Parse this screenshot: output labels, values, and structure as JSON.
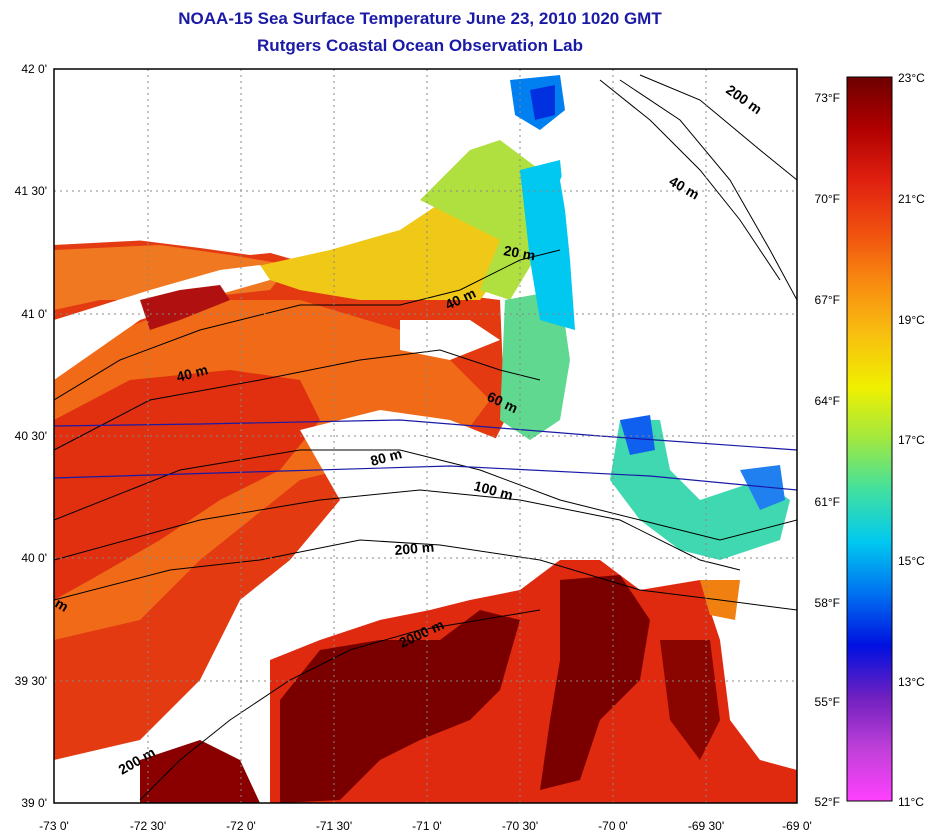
{
  "header": {
    "title": "NOAA-15 Sea Surface Temperature June 23, 2010 1020 GMT",
    "subtitle": "Rutgers Coastal Ocean Observation Lab"
  },
  "map": {
    "lon_ticks": [
      "-73 0'",
      "-72 30'",
      "-72 0'",
      "-71 30'",
      "-71 0'",
      "-70 30'",
      "-70 0'",
      "-69 30'",
      "-69 0'"
    ],
    "lat_ticks": [
      "42 0'",
      "41 30'",
      "41 0'",
      "40 30'",
      "40 0'",
      "39 30'",
      "39 0'"
    ],
    "contour_labels": [
      "200 m",
      "40 m",
      "20 m",
      "40 m",
      "40 m",
      "60 m",
      "80 m",
      "100 m",
      "200 m",
      "2000 m",
      "200 m",
      "m"
    ],
    "colors": {
      "land_none": "#ffffff",
      "contour": "#000000",
      "track": "#1a1aa6",
      "warm": "#d82a10",
      "hot": "#7a0000"
    }
  },
  "colorbar": {
    "celsius": [
      "23°C",
      "21°C",
      "19°C",
      "17°C",
      "15°C",
      "13°C",
      "11°C"
    ],
    "fahrenheit": [
      "73°F",
      "70°F",
      "67°F",
      "64°F",
      "61°F",
      "58°F",
      "55°F",
      "52°F"
    ],
    "gradient": [
      "#6e0000",
      "#b00000",
      "#e02010",
      "#f05010",
      "#f88c10",
      "#f8c010",
      "#f0f000",
      "#a0e840",
      "#40e0a0",
      "#00c8f0",
      "#0070f0",
      "#0010e0",
      "#7020c0",
      "#c040d8",
      "#ff40ff"
    ]
  }
}
